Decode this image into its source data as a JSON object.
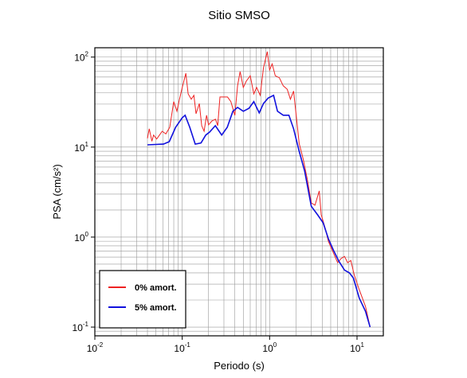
{
  "chart_data": {
    "type": "line",
    "title": "Sitio SMSO",
    "xlabel": "Periodo (s)",
    "ylabel": "PSA (cm/s²)",
    "xscale": "log",
    "yscale": "log",
    "grid": true,
    "legend": "lower left",
    "xlim": [
      0.01,
      20
    ],
    "ylim": [
      0.08,
      127
    ],
    "xticks": [
      {
        "value": 0.01,
        "label": "10",
        "exponent": "-2"
      },
      {
        "value": 0.1,
        "label": "10",
        "exponent": "-1"
      },
      {
        "value": 1,
        "label": "10",
        "exponent": "0"
      },
      {
        "value": 10,
        "label": "10",
        "exponent": "1"
      }
    ],
    "yticks": [
      {
        "value": 0.1,
        "label": "10",
        "exponent": "-1"
      },
      {
        "value": 1,
        "label": "10",
        "exponent": "0"
      },
      {
        "value": 10,
        "label": "10",
        "exponent": "1"
      },
      {
        "value": 100,
        "label": "10",
        "exponent": "2"
      }
    ],
    "xminorticks": [
      0.02,
      0.03,
      0.04,
      0.05,
      0.06,
      0.07,
      0.08,
      0.09,
      0.2,
      0.3,
      0.4,
      0.5,
      0.6,
      0.7,
      0.8,
      0.9,
      2,
      3,
      4,
      5,
      6,
      7,
      8,
      9,
      20
    ],
    "yminorticks": [
      0.09,
      0.2,
      0.3,
      0.4,
      0.5,
      0.6,
      0.7,
      0.8,
      0.9,
      2,
      3,
      4,
      5,
      6,
      7,
      8,
      9,
      20,
      30,
      40,
      50,
      60,
      70,
      80,
      90
    ],
    "series": [
      {
        "name": "0% amort.",
        "color": "#ee2222",
        "x": [
          0.04,
          0.042,
          0.045,
          0.047,
          0.051,
          0.059,
          0.065,
          0.072,
          0.08,
          0.087,
          0.093,
          0.1,
          0.11,
          0.117,
          0.127,
          0.136,
          0.144,
          0.157,
          0.167,
          0.178,
          0.19,
          0.2,
          0.22,
          0.24,
          0.255,
          0.27,
          0.33,
          0.36,
          0.4,
          0.43,
          0.46,
          0.5,
          0.54,
          0.6,
          0.66,
          0.71,
          0.78,
          0.85,
          0.94,
          1.0,
          1.07,
          1.16,
          1.29,
          1.43,
          1.59,
          1.73,
          1.88,
          2.04,
          2.18,
          2.42,
          2.7,
          3.0,
          3.3,
          3.7,
          3.9,
          4.4,
          4.7,
          5.4,
          6,
          6.6,
          7.2,
          7.8,
          8.5,
          9.3,
          10.6,
          12.5,
          14.1
        ],
        "values": [
          12.5,
          16,
          11.6,
          13.6,
          12.3,
          15,
          14,
          16.6,
          32,
          25,
          34,
          46,
          66,
          39,
          34,
          37.6,
          23.5,
          30.5,
          17.3,
          15,
          22.6,
          17.7,
          19.6,
          20.4,
          17.3,
          36,
          36,
          32,
          22.6,
          48,
          69,
          46,
          54,
          62,
          39,
          46,
          37.6,
          76,
          115,
          72,
          84,
          62,
          59,
          48,
          44,
          34,
          42,
          20,
          11,
          7.4,
          4.4,
          2.4,
          2.26,
          3.26,
          1.77,
          1.18,
          0.9,
          0.66,
          0.52,
          0.58,
          0.61,
          0.52,
          0.55,
          0.38,
          0.26,
          0.17,
          0.1
        ]
      },
      {
        "name": "5% amort.",
        "color": "#1111dd",
        "x": [
          0.04,
          0.061,
          0.071,
          0.084,
          0.1,
          0.108,
          0.122,
          0.141,
          0.164,
          0.186,
          0.206,
          0.239,
          0.283,
          0.328,
          0.38,
          0.43,
          0.5,
          0.58,
          0.66,
          0.76,
          0.85,
          0.96,
          1.11,
          1.23,
          1.43,
          1.66,
          1.88,
          2.18,
          2.52,
          3.0,
          3.54,
          4.1,
          4.7,
          5.4,
          6.2,
          7.2,
          8.2,
          9.1,
          10.6,
          12.5,
          14.1
        ],
        "values": [
          10.6,
          10.8,
          11.5,
          16.6,
          21.2,
          22.6,
          16.6,
          10.8,
          11.1,
          13.6,
          14.7,
          17.3,
          13.6,
          16.6,
          25,
          27.6,
          25,
          27,
          32,
          24,
          30.5,
          35,
          37.6,
          25,
          22.6,
          22.6,
          16,
          9,
          5.4,
          2.2,
          1.77,
          1.44,
          0.96,
          0.71,
          0.54,
          0.43,
          0.4,
          0.35,
          0.21,
          0.15,
          0.1
        ]
      }
    ]
  }
}
